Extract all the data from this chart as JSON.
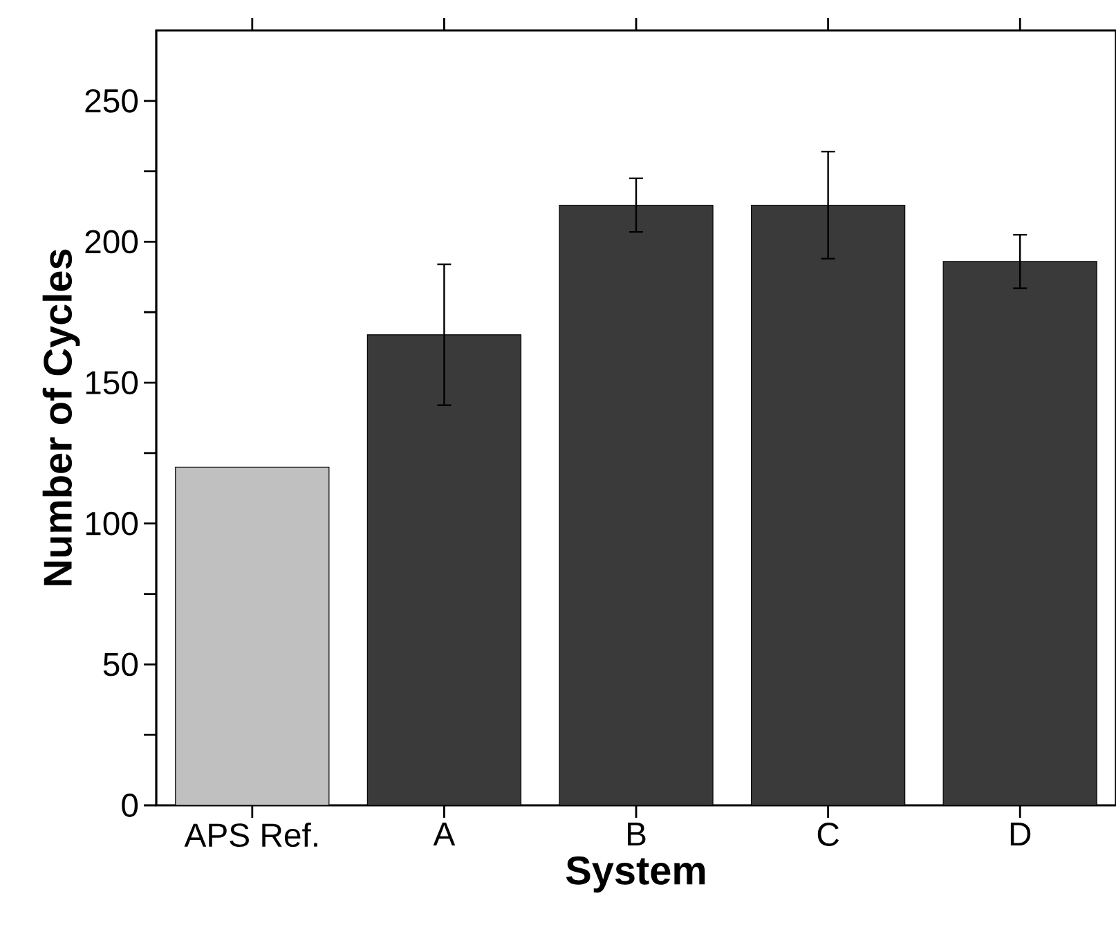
{
  "chart_data": {
    "type": "bar",
    "xlabel": "System",
    "ylabel": "Number of Cycles",
    "categories": [
      "APS Ref.",
      "A",
      "B",
      "C",
      "D"
    ],
    "values": [
      120,
      167,
      213,
      213,
      193
    ],
    "errors": [
      null,
      25,
      9.5,
      19,
      9.5
    ],
    "colors": [
      "#c0c0c0",
      "#3a3a3a",
      "#3a3a3a",
      "#3a3a3a",
      "#3a3a3a"
    ],
    "ylim": [
      0,
      275
    ],
    "yticks": [
      0,
      {
        "value": 25,
        "label": null
      },
      50,
      {
        "value": 75,
        "label": null
      },
      100,
      {
        "value": 125,
        "label": null
      },
      150,
      {
        "value": 175,
        "label": null
      },
      200,
      {
        "value": 225,
        "label": null
      },
      250
    ],
    "grid": false
  }
}
